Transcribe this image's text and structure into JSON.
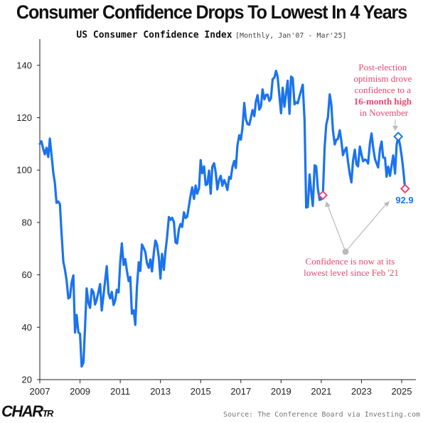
{
  "header": {
    "title": "Consumer Confidence Drops To Lowest In 4 Years",
    "subtitle": "US Consumer Confidence Index",
    "subtitle_range": "[Monthly, Jan'07 - Mar'25]"
  },
  "footer": {
    "logo_main": "CHAR",
    "logo_tail": "TR",
    "source": "Source: The Conference Board via Investing.com"
  },
  "colors": {
    "line": "#1a73f0",
    "highlight": "#e8466f",
    "peak_marker": "#1a73f0",
    "axis": "#222222",
    "annotation_gray": "#bbbbbb"
  },
  "chart_data": {
    "type": "line",
    "title": "Consumer Confidence Drops To Lowest In 4 Years",
    "subtitle": "US Consumer Confidence Index",
    "xlabel": "",
    "ylabel": "",
    "xlim": [
      2007.0,
      2025.5
    ],
    "ylim": [
      20,
      150
    ],
    "x_ticks": [
      "2007",
      "2009",
      "2011",
      "2013",
      "2015",
      "2017",
      "2019",
      "2021",
      "2023",
      "2025"
    ],
    "y_ticks": [
      "20",
      "40",
      "60",
      "80",
      "100",
      "120",
      "140"
    ],
    "grid": false,
    "series": [
      {
        "values": [
          [
            2007.0,
            110.0
          ],
          [
            2007.08,
            111.0
          ],
          [
            2007.17,
            108.0
          ],
          [
            2007.25,
            106.0
          ],
          [
            2007.33,
            108.5
          ],
          [
            2007.42,
            105.0
          ],
          [
            2007.5,
            112.0
          ],
          [
            2007.58,
            106.0
          ],
          [
            2007.67,
            99.0
          ],
          [
            2007.75,
            95.0
          ],
          [
            2007.83,
            87.5
          ],
          [
            2007.92,
            88.0
          ],
          [
            2008.0,
            87.0
          ],
          [
            2008.08,
            76.0
          ],
          [
            2008.17,
            65.0
          ],
          [
            2008.25,
            62.0
          ],
          [
            2008.33,
            58.0
          ],
          [
            2008.42,
            51.0
          ],
          [
            2008.5,
            51.5
          ],
          [
            2008.58,
            57.0
          ],
          [
            2008.67,
            59.8
          ],
          [
            2008.75,
            38.0
          ],
          [
            2008.83,
            44.7
          ],
          [
            2008.92,
            38.0
          ],
          [
            2009.0,
            37.5
          ],
          [
            2009.08,
            25.0
          ],
          [
            2009.17,
            26.5
          ],
          [
            2009.25,
            40.0
          ],
          [
            2009.33,
            54.8
          ],
          [
            2009.42,
            49.3
          ],
          [
            2009.5,
            47.4
          ],
          [
            2009.58,
            54.5
          ],
          [
            2009.67,
            53.4
          ],
          [
            2009.75,
            48.7
          ],
          [
            2009.83,
            50.6
          ],
          [
            2009.92,
            53.6
          ],
          [
            2010.0,
            56.5
          ],
          [
            2010.08,
            46.4
          ],
          [
            2010.17,
            52.3
          ],
          [
            2010.25,
            57.9
          ],
          [
            2010.33,
            63.3
          ],
          [
            2010.42,
            52.9
          ],
          [
            2010.5,
            51.0
          ],
          [
            2010.58,
            53.5
          ],
          [
            2010.67,
            48.5
          ],
          [
            2010.75,
            50.2
          ],
          [
            2010.83,
            54.3
          ],
          [
            2010.92,
            53.3
          ],
          [
            2011.0,
            64.8
          ],
          [
            2011.08,
            72.0
          ],
          [
            2011.17,
            63.8
          ],
          [
            2011.25,
            66.0
          ],
          [
            2011.33,
            61.7
          ],
          [
            2011.42,
            57.6
          ],
          [
            2011.5,
            59.2
          ],
          [
            2011.58,
            45.2
          ],
          [
            2011.67,
            46.4
          ],
          [
            2011.75,
            40.9
          ],
          [
            2011.83,
            55.2
          ],
          [
            2011.92,
            64.8
          ],
          [
            2012.0,
            61.5
          ],
          [
            2012.08,
            71.6
          ],
          [
            2012.17,
            70.2
          ],
          [
            2012.25,
            68.7
          ],
          [
            2012.33,
            64.4
          ],
          [
            2012.42,
            62.7
          ],
          [
            2012.5,
            65.9
          ],
          [
            2012.58,
            61.3
          ],
          [
            2012.67,
            68.4
          ],
          [
            2012.75,
            73.1
          ],
          [
            2012.83,
            71.5
          ],
          [
            2012.92,
            66.7
          ],
          [
            2013.0,
            58.6
          ],
          [
            2013.08,
            68.0
          ],
          [
            2013.17,
            61.9
          ],
          [
            2013.25,
            69.0
          ],
          [
            2013.33,
            74.3
          ],
          [
            2013.42,
            82.1
          ],
          [
            2013.5,
            81.0
          ],
          [
            2013.58,
            81.8
          ],
          [
            2013.67,
            80.2
          ],
          [
            2013.75,
            72.4
          ],
          [
            2013.83,
            72.0
          ],
          [
            2013.92,
            77.5
          ],
          [
            2014.0,
            79.4
          ],
          [
            2014.08,
            78.3
          ],
          [
            2014.17,
            83.9
          ],
          [
            2014.25,
            81.7
          ],
          [
            2014.33,
            82.2
          ],
          [
            2014.42,
            86.4
          ],
          [
            2014.5,
            90.3
          ],
          [
            2014.58,
            93.4
          ],
          [
            2014.67,
            89.0
          ],
          [
            2014.75,
            94.1
          ],
          [
            2014.83,
            91.0
          ],
          [
            2014.92,
            93.1
          ],
          [
            2015.0,
            103.8
          ],
          [
            2015.08,
            98.8
          ],
          [
            2015.17,
            101.4
          ],
          [
            2015.25,
            94.3
          ],
          [
            2015.33,
            94.6
          ],
          [
            2015.42,
            99.8
          ],
          [
            2015.5,
            91.0
          ],
          [
            2015.58,
            101.3
          ],
          [
            2015.67,
            102.6
          ],
          [
            2015.75,
            99.1
          ],
          [
            2015.83,
            92.6
          ],
          [
            2015.92,
            96.3
          ],
          [
            2016.0,
            97.8
          ],
          [
            2016.08,
            94.0
          ],
          [
            2016.17,
            96.2
          ],
          [
            2016.25,
            94.7
          ],
          [
            2016.33,
            92.4
          ],
          [
            2016.42,
            97.4
          ],
          [
            2016.5,
            96.7
          ],
          [
            2016.58,
            101.1
          ],
          [
            2016.67,
            103.5
          ],
          [
            2016.75,
            100.8
          ],
          [
            2016.83,
            109.4
          ],
          [
            2016.92,
            113.3
          ],
          [
            2017.0,
            111.6
          ],
          [
            2017.08,
            116.1
          ],
          [
            2017.17,
            125.6
          ],
          [
            2017.25,
            119.4
          ],
          [
            2017.33,
            117.6
          ],
          [
            2017.42,
            117.3
          ],
          [
            2017.5,
            120.0
          ],
          [
            2017.58,
            122.9
          ],
          [
            2017.67,
            120.6
          ],
          [
            2017.75,
            126.2
          ],
          [
            2017.83,
            128.6
          ],
          [
            2017.92,
            123.1
          ],
          [
            2018.0,
            124.3
          ],
          [
            2018.08,
            130.8
          ],
          [
            2018.17,
            127.0
          ],
          [
            2018.25,
            128.7
          ],
          [
            2018.33,
            128.8
          ],
          [
            2018.42,
            126.4
          ],
          [
            2018.5,
            127.4
          ],
          [
            2018.58,
            134.7
          ],
          [
            2018.67,
            135.3
          ],
          [
            2018.75,
            137.9
          ],
          [
            2018.83,
            135.7
          ],
          [
            2018.92,
            128.1
          ],
          [
            2019.0,
            121.7
          ],
          [
            2019.08,
            131.4
          ],
          [
            2019.17,
            124.2
          ],
          [
            2019.25,
            129.2
          ],
          [
            2019.33,
            134.1
          ],
          [
            2019.42,
            121.5
          ],
          [
            2019.5,
            135.7
          ],
          [
            2019.58,
            135.1
          ],
          [
            2019.67,
            125.1
          ],
          [
            2019.75,
            125.9
          ],
          [
            2019.83,
            125.5
          ],
          [
            2019.92,
            128.2
          ],
          [
            2020.0,
            130.4
          ],
          [
            2020.08,
            132.6
          ],
          [
            2020.17,
            118.8
          ],
          [
            2020.25,
            85.7
          ],
          [
            2020.33,
            85.9
          ],
          [
            2020.42,
            98.3
          ],
          [
            2020.5,
            91.7
          ],
          [
            2020.58,
            86.3
          ],
          [
            2020.67,
            101.8
          ],
          [
            2020.75,
            101.4
          ],
          [
            2020.83,
            92.9
          ],
          [
            2020.92,
            88.6
          ],
          [
            2021.0,
            88.9
          ],
          [
            2021.08,
            90.4
          ],
          [
            2021.17,
            109.0
          ],
          [
            2021.25,
            117.5
          ],
          [
            2021.33,
            120.0
          ],
          [
            2021.42,
            128.9
          ],
          [
            2021.5,
            125.1
          ],
          [
            2021.58,
            115.2
          ],
          [
            2021.67,
            109.8
          ],
          [
            2021.75,
            111.6
          ],
          [
            2021.83,
            111.9
          ],
          [
            2021.92,
            115.2
          ],
          [
            2022.0,
            111.1
          ],
          [
            2022.08,
            105.7
          ],
          [
            2022.17,
            107.6
          ],
          [
            2022.25,
            108.6
          ],
          [
            2022.33,
            103.2
          ],
          [
            2022.42,
            98.4
          ],
          [
            2022.5,
            95.3
          ],
          [
            2022.58,
            103.6
          ],
          [
            2022.67,
            107.8
          ],
          [
            2022.75,
            102.2
          ],
          [
            2022.83,
            101.4
          ],
          [
            2022.92,
            109.0
          ],
          [
            2023.0,
            106.0
          ],
          [
            2023.08,
            103.4
          ],
          [
            2023.17,
            104.0
          ],
          [
            2023.25,
            103.7
          ],
          [
            2023.33,
            102.5
          ],
          [
            2023.42,
            110.1
          ],
          [
            2023.5,
            114.0
          ],
          [
            2023.58,
            108.7
          ],
          [
            2023.67,
            104.3
          ],
          [
            2023.75,
            102.6
          ],
          [
            2023.83,
            101.0
          ],
          [
            2023.92,
            108.0
          ],
          [
            2024.0,
            110.9
          ],
          [
            2024.08,
            104.8
          ],
          [
            2024.17,
            104.7
          ],
          [
            2024.25,
            97.5
          ],
          [
            2024.33,
            101.3
          ],
          [
            2024.42,
            97.8
          ],
          [
            2024.5,
            101.9
          ],
          [
            2024.58,
            105.6
          ],
          [
            2024.67,
            98.7
          ],
          [
            2024.75,
            109.6
          ],
          [
            2024.83,
            112.8
          ],
          [
            2024.92,
            109.5
          ],
          [
            2025.0,
            105.3
          ],
          [
            2025.08,
            100.1
          ],
          [
            2025.17,
            92.9
          ]
        ]
      }
    ],
    "highlighted_points": [
      {
        "x": 2021.08,
        "y": 90.4,
        "style": "low"
      },
      {
        "x": 2024.83,
        "y": 112.8,
        "style": "peak"
      },
      {
        "x": 2025.17,
        "y": 92.9,
        "style": "low"
      }
    ],
    "end_label": "92.9",
    "annotations": {
      "peak": {
        "line1": "Post-election",
        "line2": "optimism drove",
        "line3": "confidence to a",
        "line4_bold": "16-month high",
        "line5": "in November"
      },
      "low": {
        "line1": "Confidence is now at its",
        "line2": "lowest level since Feb '21"
      }
    }
  }
}
